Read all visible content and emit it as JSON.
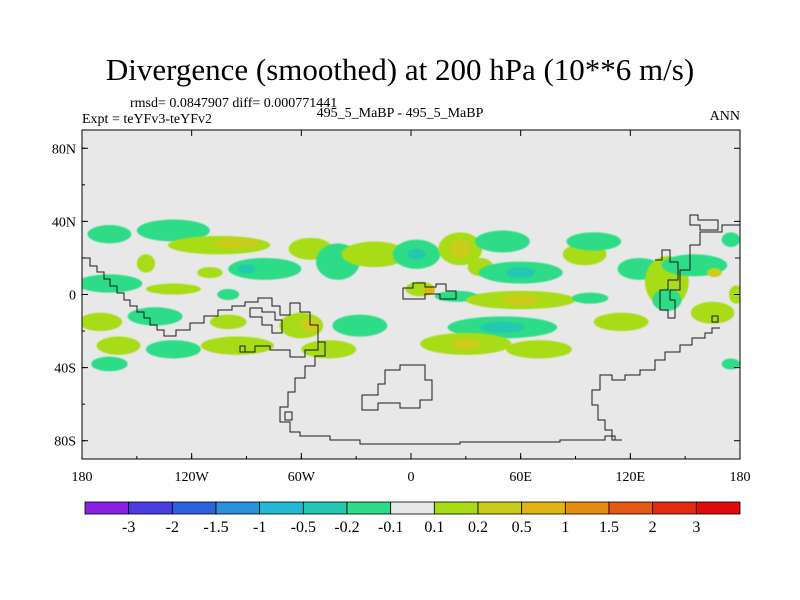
{
  "title": "Divergence (smoothed) at 200 hPa (10**6 m/s)",
  "stats": "rmsd= 0.0847907 diff= 0.000771441",
  "expt": "Expt = teYFv3-teYFv2",
  "case": "495_5_MaBP - 495_5_MaBP",
  "season": "ANN",
  "chart_data": {
    "type": "heatmap",
    "title": "Divergence (smoothed) at 200 hPa (10**6 m/s)",
    "variable": "divergence difference",
    "units": "10**6 m/s",
    "x_ticks": [
      {
        "value": -180,
        "label": "180"
      },
      {
        "value": -120,
        "label": "120W"
      },
      {
        "value": -60,
        "label": "60W"
      },
      {
        "value": 0,
        "label": "0"
      },
      {
        "value": 60,
        "label": "60E"
      },
      {
        "value": 120,
        "label": "120E"
      },
      {
        "value": 180,
        "label": "180"
      }
    ],
    "y_ticks": [
      {
        "value": 80,
        "label": "80N"
      },
      {
        "value": 40,
        "label": "40N"
      },
      {
        "value": 0,
        "label": "0"
      },
      {
        "value": -40,
        "label": "40S"
      },
      {
        "value": -80,
        "label": "80S"
      }
    ],
    "xlim": [
      -180,
      180
    ],
    "ylim": [
      -90,
      90
    ],
    "colorbar": {
      "labels": [
        "-3",
        "-2",
        "-1.5",
        "-1",
        "-0.5",
        "-0.2",
        "-0.1",
        "0.1",
        "0.2",
        "0.5",
        "1",
        "1.5",
        "2",
        "3"
      ],
      "colors": [
        "#8a20e0",
        "#4a3ee0",
        "#2c62dc",
        "#2a92dc",
        "#25b8d4",
        "#22c8b0",
        "#2edc88",
        "#e8e8e8",
        "#a8dc14",
        "#cccc1c",
        "#e0b414",
        "#e68c14",
        "#e45a14",
        "#e22c12",
        "#e00c0c"
      ]
    },
    "anomalies": [
      {
        "lon": -165,
        "lat": 33,
        "rx": 12,
        "ry": 5,
        "level": 6
      },
      {
        "lon": -130,
        "lat": 35,
        "rx": 20,
        "ry": 6,
        "level": 6
      },
      {
        "lon": -105,
        "lat": 27,
        "rx": 28,
        "ry": 5,
        "level": 8
      },
      {
        "lon": -95,
        "lat": 28,
        "rx": 12,
        "ry": 3,
        "level": 9
      },
      {
        "lon": -145,
        "lat": 17,
        "rx": 5,
        "ry": 5,
        "level": 8
      },
      {
        "lon": -110,
        "lat": 12,
        "rx": 7,
        "ry": 3,
        "level": 8
      },
      {
        "lon": -80,
        "lat": 14,
        "rx": 20,
        "ry": 6,
        "level": 6
      },
      {
        "lon": -90,
        "lat": 14,
        "rx": 5,
        "ry": 2.5,
        "level": 5
      },
      {
        "lon": -55,
        "lat": 25,
        "rx": 12,
        "ry": 6,
        "level": 8
      },
      {
        "lon": -40,
        "lat": 18,
        "rx": 12,
        "ry": 10,
        "level": 6
      },
      {
        "lon": -20,
        "lat": 22,
        "rx": 18,
        "ry": 7,
        "level": 8
      },
      {
        "lon": 3,
        "lat": 22,
        "rx": 13,
        "ry": 8,
        "level": 6
      },
      {
        "lon": 3,
        "lat": 22,
        "rx": 5,
        "ry": 3,
        "level": 5
      },
      {
        "lon": 27,
        "lat": 25,
        "rx": 12,
        "ry": 9,
        "level": 8
      },
      {
        "lon": 27,
        "lat": 25,
        "rx": 6,
        "ry": 5,
        "level": 9
      },
      {
        "lon": 50,
        "lat": 29,
        "rx": 15,
        "ry": 6,
        "level": 6
      },
      {
        "lon": 38,
        "lat": 15,
        "rx": 7,
        "ry": 5,
        "level": 8
      },
      {
        "lon": 60,
        "lat": 12,
        "rx": 23,
        "ry": 6,
        "level": 6
      },
      {
        "lon": 60,
        "lat": 12,
        "rx": 8,
        "ry": 3,
        "level": 5
      },
      {
        "lon": 95,
        "lat": 22,
        "rx": 12,
        "ry": 6,
        "level": 8
      },
      {
        "lon": 100,
        "lat": 29,
        "rx": 15,
        "ry": 5,
        "level": 6
      },
      {
        "lon": 125,
        "lat": 14,
        "rx": 12,
        "ry": 6,
        "level": 6
      },
      {
        "lon": 140,
        "lat": 7,
        "rx": 12,
        "ry": 14,
        "level": 8
      },
      {
        "lon": 155,
        "lat": 16,
        "rx": 18,
        "ry": 6,
        "level": 6
      },
      {
        "lon": 166,
        "lat": 12,
        "rx": 4,
        "ry": 2.5,
        "level": 9
      },
      {
        "lon": 175,
        "lat": 30,
        "rx": 5,
        "ry": 4,
        "level": 6
      },
      {
        "lon": -165,
        "lat": 6,
        "rx": 18,
        "ry": 5,
        "level": 6
      },
      {
        "lon": -130,
        "lat": 3,
        "rx": 15,
        "ry": 3,
        "level": 8
      },
      {
        "lon": -100,
        "lat": 0,
        "rx": 6,
        "ry": 3,
        "level": 6
      },
      {
        "lon": 5,
        "lat": 3,
        "rx": 8,
        "ry": 4,
        "level": 8
      },
      {
        "lon": 10,
        "lat": 2,
        "rx": 3,
        "ry": 2,
        "level": 10
      },
      {
        "lon": 25,
        "lat": -1,
        "rx": 12,
        "ry": 3,
        "level": 6
      },
      {
        "lon": 60,
        "lat": -3,
        "rx": 30,
        "ry": 5,
        "level": 8
      },
      {
        "lon": 60,
        "lat": -3,
        "rx": 10,
        "ry": 3,
        "level": 9
      },
      {
        "lon": 98,
        "lat": -2,
        "rx": 10,
        "ry": 3,
        "level": 6
      },
      {
        "lon": 140,
        "lat": -3,
        "rx": 8,
        "ry": 6,
        "level": 6
      },
      {
        "lon": 178,
        "lat": 0,
        "rx": 4,
        "ry": 5,
        "level": 8
      },
      {
        "lon": -170,
        "lat": -15,
        "rx": 12,
        "ry": 5,
        "level": 8
      },
      {
        "lon": -140,
        "lat": -12,
        "rx": 15,
        "ry": 5,
        "level": 6
      },
      {
        "lon": -100,
        "lat": -15,
        "rx": 10,
        "ry": 4,
        "level": 8
      },
      {
        "lon": -60,
        "lat": -17,
        "rx": 12,
        "ry": 7,
        "level": 8
      },
      {
        "lon": -55,
        "lat": -17,
        "rx": 5,
        "ry": 4,
        "level": 9
      },
      {
        "lon": -28,
        "lat": -17,
        "rx": 15,
        "ry": 6,
        "level": 6
      },
      {
        "lon": 50,
        "lat": -18,
        "rx": 30,
        "ry": 6,
        "level": 6
      },
      {
        "lon": 50,
        "lat": -18,
        "rx": 12,
        "ry": 3,
        "level": 5
      },
      {
        "lon": 115,
        "lat": -15,
        "rx": 15,
        "ry": 5,
        "level": 8
      },
      {
        "lon": 165,
        "lat": -10,
        "rx": 12,
        "ry": 6,
        "level": 8
      },
      {
        "lon": -160,
        "lat": -28,
        "rx": 12,
        "ry": 5,
        "level": 8
      },
      {
        "lon": -130,
        "lat": -30,
        "rx": 15,
        "ry": 5,
        "level": 6
      },
      {
        "lon": -95,
        "lat": -28,
        "rx": 20,
        "ry": 5,
        "level": 8
      },
      {
        "lon": -45,
        "lat": -30,
        "rx": 15,
        "ry": 5,
        "level": 8
      },
      {
        "lon": 30,
        "lat": -27,
        "rx": 25,
        "ry": 6,
        "level": 8
      },
      {
        "lon": 30,
        "lat": -27,
        "rx": 8,
        "ry": 3,
        "level": 9
      },
      {
        "lon": 70,
        "lat": -30,
        "rx": 18,
        "ry": 5,
        "level": 8
      },
      {
        "lon": -165,
        "lat": -38,
        "rx": 10,
        "ry": 4,
        "level": 6
      },
      {
        "lon": 175,
        "lat": -38,
        "rx": 5,
        "ry": 3,
        "level": 6
      }
    ]
  }
}
